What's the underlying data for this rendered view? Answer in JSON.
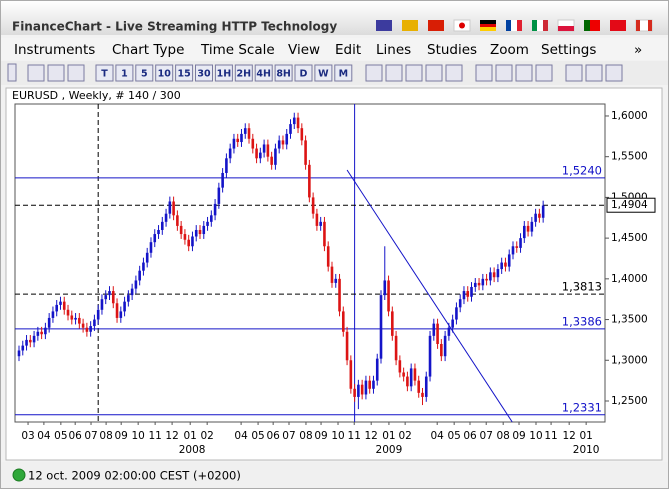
{
  "window": {
    "title": "FinanceChart - Live Streaming HTTP Technology"
  },
  "menu": [
    "Instruments",
    "Chart Type",
    "Time Scale",
    "View",
    "Edit",
    "Lines",
    "Studies",
    "Zoom",
    "Settings",
    "»"
  ],
  "toolbar": [
    "T",
    "1",
    "5",
    "10",
    "15",
    "30",
    "1H",
    "2H",
    "4H",
    "8H",
    "D",
    "W",
    "M"
  ],
  "chart_data": {
    "type": "candlestick",
    "title": "EURUSD , Weekly, # 140 / 300",
    "up_color": "#1414c8",
    "down_color": "#dc1414",
    "x": [
      0,
      1,
      2,
      3,
      4,
      5,
      6,
      7,
      8,
      9,
      10,
      11,
      12,
      13,
      14,
      15,
      16,
      17,
      18,
      19,
      20,
      21,
      22,
      23,
      24,
      25,
      26,
      27,
      28,
      29,
      30,
      31,
      32,
      33,
      34,
      35,
      36,
      37,
      38,
      39,
      40,
      41,
      42,
      43,
      44,
      45,
      46,
      47,
      48,
      49,
      50,
      51,
      52,
      53,
      54,
      55,
      56,
      57,
      58,
      59,
      60,
      61,
      62,
      63,
      64,
      65,
      66,
      67,
      68,
      69,
      70,
      71,
      72,
      73,
      74,
      75,
      76,
      77,
      78,
      79,
      80,
      81,
      82,
      83,
      84,
      85,
      86,
      87,
      88,
      89,
      90,
      91,
      92,
      93,
      94,
      95,
      96,
      97,
      98,
      99,
      100,
      101,
      102,
      103,
      104,
      105,
      106,
      107,
      108,
      109,
      110,
      111,
      112,
      113,
      114,
      115,
      116,
      117,
      118,
      119,
      120,
      121,
      122,
      123,
      124,
      125,
      126,
      127,
      128,
      129,
      130,
      131,
      132,
      133,
      134,
      135,
      136,
      137,
      138,
      139
    ],
    "open": [
      1.305,
      1.312,
      1.318,
      1.325,
      1.322,
      1.33,
      1.335,
      1.332,
      1.34,
      1.352,
      1.36,
      1.368,
      1.372,
      1.362,
      1.355,
      1.35,
      1.352,
      1.345,
      1.34,
      1.335,
      1.342,
      1.35,
      1.362,
      1.375,
      1.38,
      1.385,
      1.37,
      1.352,
      1.36,
      1.372,
      1.38,
      1.388,
      1.398,
      1.41,
      1.42,
      1.432,
      1.445,
      1.455,
      1.46,
      1.47,
      1.48,
      1.495,
      1.478,
      1.465,
      1.455,
      1.448,
      1.44,
      1.452,
      1.46,
      1.455,
      1.465,
      1.47,
      1.478,
      1.492,
      1.512,
      1.53,
      1.548,
      1.56,
      1.572,
      1.568,
      1.578,
      1.585,
      1.572,
      1.56,
      1.548,
      1.555,
      1.565,
      1.55,
      1.54,
      1.56,
      1.57,
      1.565,
      1.578,
      1.59,
      1.598,
      1.585,
      1.57,
      1.54,
      1.5,
      1.48,
      1.465,
      1.47,
      1.44,
      1.415,
      1.395,
      1.4,
      1.36,
      1.335,
      1.3,
      1.265,
      1.255,
      1.27,
      1.258,
      1.275,
      1.265,
      1.275,
      1.302,
      1.38,
      1.398,
      1.36,
      1.33,
      1.3,
      1.285,
      1.28,
      1.268,
      1.29,
      1.275,
      1.26,
      1.255,
      1.28,
      1.33,
      1.345,
      1.32,
      1.305,
      1.33,
      1.34,
      1.35,
      1.365,
      1.375,
      1.385,
      1.378,
      1.39,
      1.395,
      1.392,
      1.4,
      1.398,
      1.408,
      1.402,
      1.412,
      1.42,
      1.415,
      1.43,
      1.44,
      1.438,
      1.45,
      1.465,
      1.458,
      1.47,
      1.48,
      1.475
    ],
    "high": [
      1.318,
      1.324,
      1.331,
      1.331,
      1.336,
      1.341,
      1.341,
      1.346,
      1.358,
      1.366,
      1.374,
      1.378,
      1.378,
      1.368,
      1.361,
      1.358,
      1.358,
      1.351,
      1.346,
      1.348,
      1.356,
      1.368,
      1.381,
      1.386,
      1.391,
      1.391,
      1.376,
      1.366,
      1.378,
      1.386,
      1.394,
      1.404,
      1.416,
      1.426,
      1.438,
      1.451,
      1.461,
      1.466,
      1.476,
      1.486,
      1.501,
      1.501,
      1.484,
      1.471,
      1.461,
      1.454,
      1.458,
      1.466,
      1.466,
      1.471,
      1.476,
      1.484,
      1.498,
      1.518,
      1.536,
      1.554,
      1.566,
      1.578,
      1.578,
      1.584,
      1.591,
      1.591,
      1.578,
      1.566,
      1.561,
      1.571,
      1.571,
      1.556,
      1.566,
      1.576,
      1.576,
      1.584,
      1.596,
      1.604,
      1.604,
      1.591,
      1.576,
      1.546,
      1.506,
      1.486,
      1.476,
      1.476,
      1.446,
      1.421,
      1.406,
      1.406,
      1.366,
      1.341,
      1.306,
      1.271,
      1.276,
      1.276,
      1.281,
      1.281,
      1.281,
      1.308,
      1.386,
      1.44,
      1.404,
      1.366,
      1.336,
      1.306,
      1.291,
      1.286,
      1.296,
      1.296,
      1.281,
      1.266,
      1.286,
      1.336,
      1.351,
      1.351,
      1.326,
      1.336,
      1.346,
      1.356,
      1.371,
      1.381,
      1.391,
      1.391,
      1.396,
      1.401,
      1.401,
      1.406,
      1.406,
      1.414,
      1.414,
      1.418,
      1.426,
      1.426,
      1.436,
      1.446,
      1.446,
      1.456,
      1.471,
      1.471,
      1.476,
      1.486,
      1.486,
      1.496
    ],
    "low": [
      1.299,
      1.306,
      1.312,
      1.316,
      1.316,
      1.324,
      1.326,
      1.326,
      1.334,
      1.346,
      1.354,
      1.362,
      1.356,
      1.349,
      1.344,
      1.344,
      1.339,
      1.334,
      1.329,
      1.329,
      1.336,
      1.344,
      1.356,
      1.369,
      1.374,
      1.364,
      1.346,
      1.346,
      1.354,
      1.366,
      1.374,
      1.382,
      1.392,
      1.404,
      1.414,
      1.426,
      1.439,
      1.449,
      1.454,
      1.464,
      1.474,
      1.472,
      1.459,
      1.449,
      1.442,
      1.434,
      1.434,
      1.446,
      1.449,
      1.449,
      1.459,
      1.464,
      1.472,
      1.486,
      1.506,
      1.524,
      1.542,
      1.554,
      1.562,
      1.562,
      1.572,
      1.566,
      1.554,
      1.542,
      1.542,
      1.549,
      1.544,
      1.534,
      1.534,
      1.554,
      1.559,
      1.559,
      1.572,
      1.584,
      1.579,
      1.564,
      1.534,
      1.494,
      1.474,
      1.459,
      1.459,
      1.434,
      1.409,
      1.389,
      1.389,
      1.354,
      1.329,
      1.294,
      1.259,
      1.249,
      1.24,
      1.252,
      1.252,
      1.259,
      1.259,
      1.269,
      1.296,
      1.374,
      1.354,
      1.324,
      1.294,
      1.279,
      1.274,
      1.262,
      1.262,
      1.269,
      1.254,
      1.245,
      1.249,
      1.274,
      1.324,
      1.314,
      1.299,
      1.299,
      1.324,
      1.334,
      1.344,
      1.359,
      1.369,
      1.372,
      1.372,
      1.384,
      1.386,
      1.386,
      1.392,
      1.392,
      1.396,
      1.396,
      1.406,
      1.409,
      1.409,
      1.424,
      1.432,
      1.432,
      1.444,
      1.452,
      1.452,
      1.464,
      1.469,
      1.469
    ],
    "close": [
      1.312,
      1.318,
      1.325,
      1.322,
      1.33,
      1.335,
      1.332,
      1.34,
      1.352,
      1.36,
      1.368,
      1.372,
      1.362,
      1.355,
      1.35,
      1.352,
      1.345,
      1.34,
      1.335,
      1.342,
      1.35,
      1.362,
      1.375,
      1.38,
      1.385,
      1.37,
      1.352,
      1.36,
      1.372,
      1.38,
      1.388,
      1.398,
      1.41,
      1.42,
      1.432,
      1.445,
      1.455,
      1.46,
      1.47,
      1.48,
      1.495,
      1.478,
      1.465,
      1.455,
      1.448,
      1.44,
      1.452,
      1.46,
      1.455,
      1.465,
      1.47,
      1.478,
      1.492,
      1.512,
      1.53,
      1.548,
      1.56,
      1.572,
      1.568,
      1.578,
      1.585,
      1.572,
      1.56,
      1.548,
      1.555,
      1.565,
      1.55,
      1.54,
      1.56,
      1.57,
      1.565,
      1.578,
      1.59,
      1.598,
      1.585,
      1.57,
      1.54,
      1.5,
      1.48,
      1.465,
      1.47,
      1.44,
      1.415,
      1.395,
      1.4,
      1.36,
      1.335,
      1.3,
      1.265,
      1.255,
      1.27,
      1.258,
      1.275,
      1.265,
      1.275,
      1.302,
      1.38,
      1.398,
      1.36,
      1.33,
      1.3,
      1.285,
      1.28,
      1.268,
      1.29,
      1.275,
      1.26,
      1.255,
      1.28,
      1.33,
      1.345,
      1.32,
      1.305,
      1.33,
      1.34,
      1.35,
      1.365,
      1.375,
      1.385,
      1.378,
      1.39,
      1.395,
      1.392,
      1.4,
      1.398,
      1.408,
      1.402,
      1.412,
      1.42,
      1.415,
      1.43,
      1.44,
      1.438,
      1.45,
      1.465,
      1.458,
      1.47,
      1.48,
      1.475,
      1.49
    ],
    "xlim": [
      -1.06,
      155.4
    ],
    "ylim": [
      1.2242,
      1.6147
    ],
    "yticks": [
      {
        "value": 1.6,
        "label": "1,6000"
      },
      {
        "value": 1.55,
        "label": "1,5500"
      },
      {
        "value": 1.5,
        "label": "1,5000"
      },
      {
        "value": 1.45,
        "label": "1,4500"
      },
      {
        "value": 1.4,
        "label": "1,4000"
      },
      {
        "value": 1.35,
        "label": "1,3500"
      },
      {
        "value": 1.3,
        "label": "1,3000"
      },
      {
        "value": 1.25,
        "label": "1,2500"
      }
    ],
    "xticks": [
      {
        "value": 2.4,
        "label": "03"
      },
      {
        "value": 6.6,
        "label": "04"
      },
      {
        "value": 11.1,
        "label": "05"
      },
      {
        "value": 14.9,
        "label": "06"
      },
      {
        "value": 19.1,
        "label": "07"
      },
      {
        "value": 23.1,
        "label": "08"
      },
      {
        "value": 27.1,
        "label": "09"
      },
      {
        "value": 31.6,
        "label": "10"
      },
      {
        "value": 36.1,
        "label": "11"
      },
      {
        "value": 40.6,
        "label": "12"
      },
      {
        "value": 45.4,
        "label": "01"
      },
      {
        "value": 49.9,
        "label": "02"
      },
      {
        "value": 58.9,
        "label": "04"
      },
      {
        "value": 63.4,
        "label": "05"
      },
      {
        "value": 67.4,
        "label": "06"
      },
      {
        "value": 71.6,
        "label": "07"
      },
      {
        "value": 76.1,
        "label": "08"
      },
      {
        "value": 80.1,
        "label": "09"
      },
      {
        "value": 84.6,
        "label": "10"
      },
      {
        "value": 88.9,
        "label": "11"
      },
      {
        "value": 93.4,
        "label": "12"
      },
      {
        "value": 98.1,
        "label": "01"
      },
      {
        "value": 102.4,
        "label": "02"
      },
      {
        "value": 110.9,
        "label": "04"
      },
      {
        "value": 115.4,
        "label": "05"
      },
      {
        "value": 119.6,
        "label": "06"
      },
      {
        "value": 123.9,
        "label": "07"
      },
      {
        "value": 128.4,
        "label": "08"
      },
      {
        "value": 132.6,
        "label": "09"
      },
      {
        "value": 137.1,
        "label": "10"
      },
      {
        "value": 141.1,
        "label": "11"
      },
      {
        "value": 145.9,
        "label": "12"
      },
      {
        "value": 150.4,
        "label": "01"
      }
    ],
    "year_ticks": [
      {
        "value": 45.9,
        "label": "2008"
      },
      {
        "value": 98.1,
        "label": "2009"
      },
      {
        "value": 150.4,
        "label": "2010"
      }
    ],
    "hlines": [
      {
        "value": 1.524,
        "label": "1,5240",
        "color": "#1414c8",
        "style": "solid"
      },
      {
        "value": 1.3813,
        "label": "1,3813",
        "color": "#000000",
        "style": "dashed"
      },
      {
        "value": 1.3386,
        "label": "1,3386",
        "color": "#1414c8",
        "style": "solid"
      },
      {
        "value": 1.2331,
        "label": "1,2331",
        "color": "#1414c8",
        "style": "solid"
      }
    ],
    "last_price": {
      "value": 1.4904,
      "label": "1,4904",
      "color": "#000000"
    },
    "vlines": [
      {
        "x": 21,
        "color": "#000000",
        "style": "dashed"
      },
      {
        "x": 89,
        "color": "#1414c8",
        "style": "solid"
      }
    ],
    "trendline": {
      "x": [
        87.0,
        130.8
      ],
      "y": [
        1.5337,
        1.2242
      ],
      "color": "#1414c8"
    }
  },
  "status": "12 oct. 2009 02:00:00  CEST (+0200)"
}
